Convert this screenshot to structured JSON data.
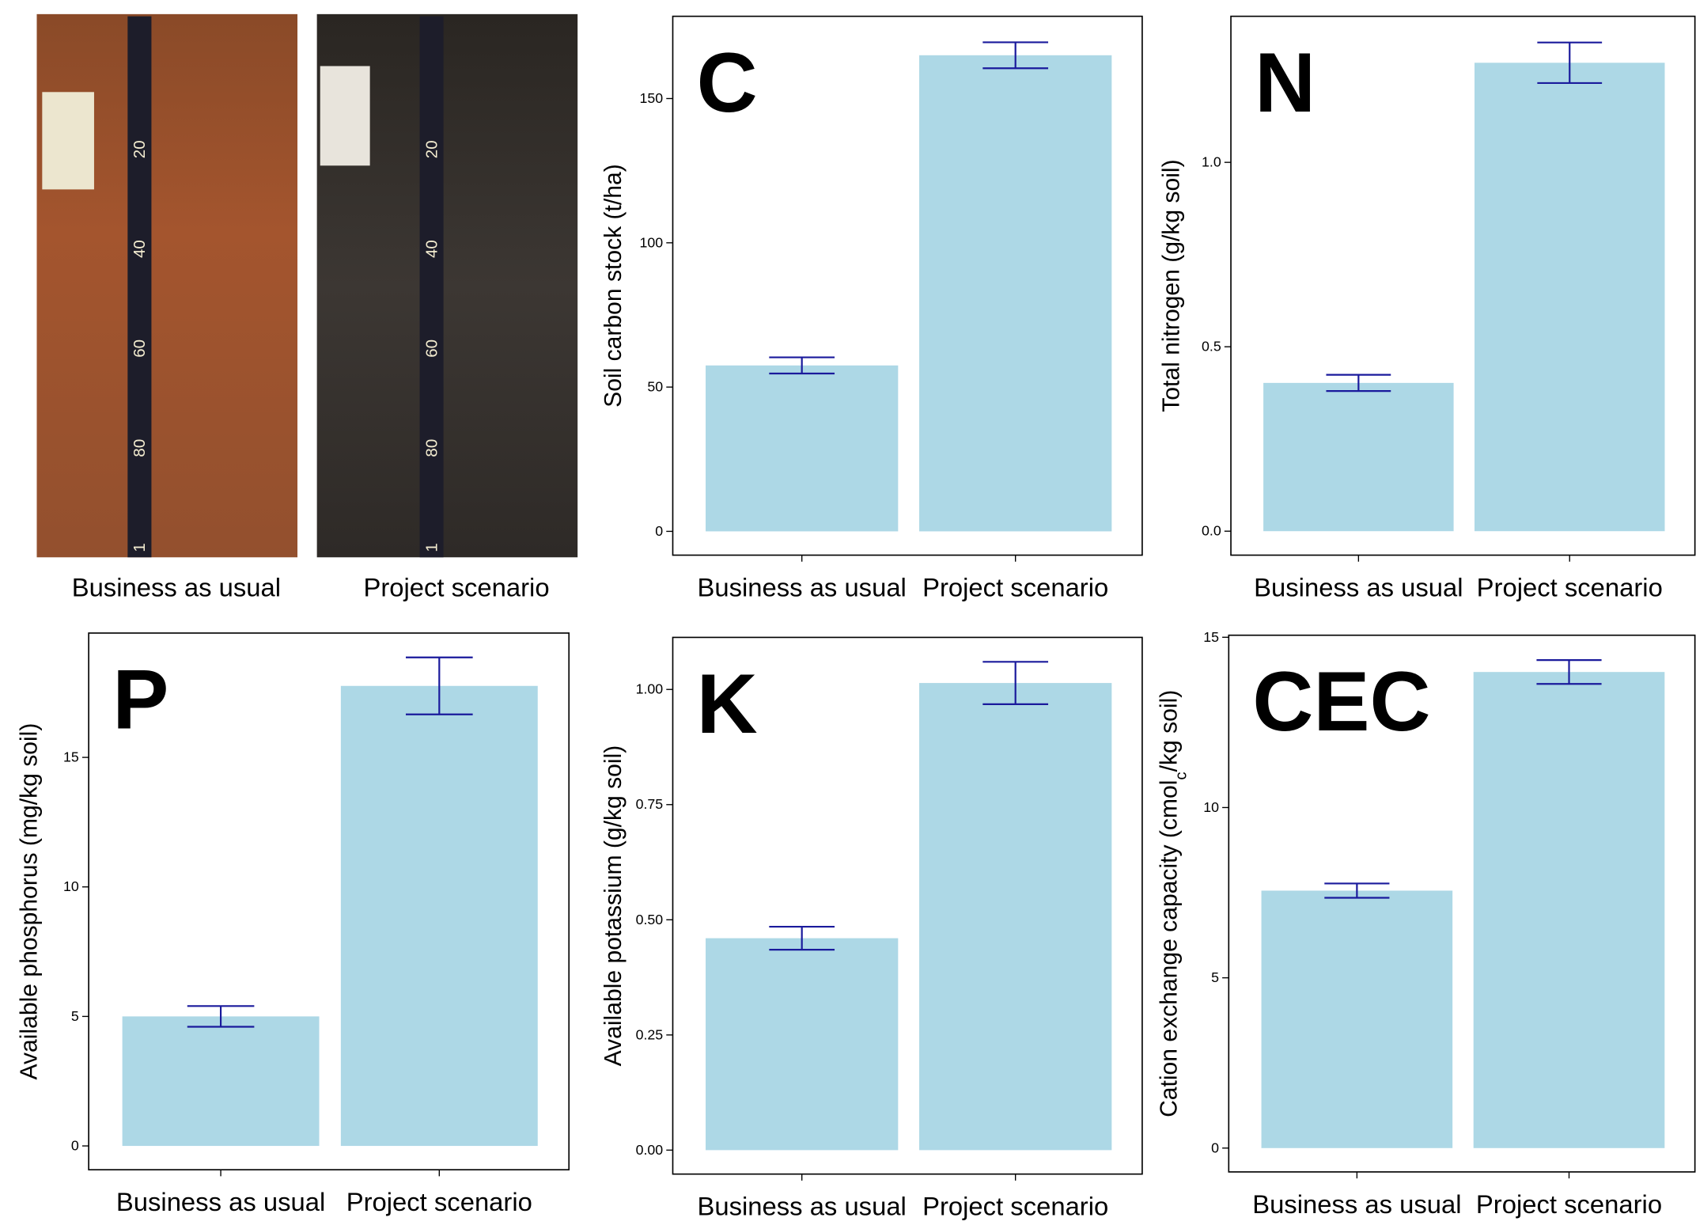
{
  "photos": [
    {
      "label": "Business as usual",
      "ruler": [
        "20",
        "40",
        "60",
        "80",
        "1"
      ]
    },
    {
      "label": "Project scenario",
      "ruler": [
        "20",
        "40",
        "60",
        "80",
        "1"
      ]
    }
  ],
  "chart_data": [
    {
      "type": "bar",
      "annotation": "C",
      "ylabel": "Soil carbon stock (t/ha)",
      "categories": [
        "Business as usual",
        "Project scenario"
      ],
      "values": [
        57.5,
        165
      ],
      "errors": [
        2.8,
        4.5
      ],
      "color": "lightblue",
      "error_color": "#1a1a9c",
      "ylim": [
        -8.25,
        178.5
      ],
      "yticks": [
        0,
        50,
        100,
        150
      ]
    },
    {
      "type": "bar",
      "annotation": "N",
      "ylabel": "Total nitrogen (g/kg soil)",
      "categories": [
        "Business as usual",
        "Project scenario"
      ],
      "values": [
        0.402,
        1.27
      ],
      "errors": [
        0.022,
        0.055
      ],
      "color": "lightblue",
      "error_color": "#1a1a9c",
      "ylim": [
        -0.065,
        1.396
      ],
      "yticks": [
        {
          "value": 0,
          "label": "0.0"
        },
        {
          "value": 0.5,
          "label": "0.5"
        },
        {
          "value": 1,
          "label": "1.0"
        }
      ]
    },
    {
      "type": "bar",
      "annotation": "P",
      "ylabel": "Available phosphorus (mg/kg soil)",
      "categories": [
        "Business as usual",
        "Project scenario"
      ],
      "values": [
        5.0,
        17.76
      ],
      "errors": [
        0.4,
        1.1
      ],
      "color": "lightblue",
      "error_color": "#1a1a9c",
      "ylim": [
        -0.92,
        19.8
      ],
      "yticks": [
        0,
        5,
        10,
        15
      ]
    },
    {
      "type": "bar",
      "annotation": "K",
      "ylabel": "Available potassium (g/kg soil)",
      "categories": [
        "Business as usual",
        "Project scenario"
      ],
      "values": [
        0.46,
        1.014
      ],
      "errors": [
        0.025,
        0.046
      ],
      "color": "lightblue",
      "error_color": "#1a1a9c",
      "ylim": [
        -0.052,
        1.113
      ],
      "yticks": [
        {
          "value": 0,
          "label": "0.00"
        },
        {
          "value": 0.25,
          "label": "0.25"
        },
        {
          "value": 0.5,
          "label": "0.50"
        },
        {
          "value": 0.75,
          "label": "0.75"
        },
        {
          "value": 1,
          "label": "1.00"
        }
      ]
    },
    {
      "type": "bar",
      "annotation": "CEC",
      "ylabel": [
        {
          "text": "Cation exchange capacity (cmol"
        },
        {
          "text": "c",
          "sub": true
        },
        {
          "text": "/kg soil)"
        }
      ],
      "categories": [
        "Business as usual",
        "Project scenario"
      ],
      "values": [
        7.56,
        13.98
      ],
      "errors": [
        0.21,
        0.35
      ],
      "color": "lightblue",
      "error_color": "#1a1a9c",
      "ylim": [
        -0.7,
        15.06
      ],
      "yticks": [
        0,
        5,
        10,
        15
      ]
    }
  ]
}
